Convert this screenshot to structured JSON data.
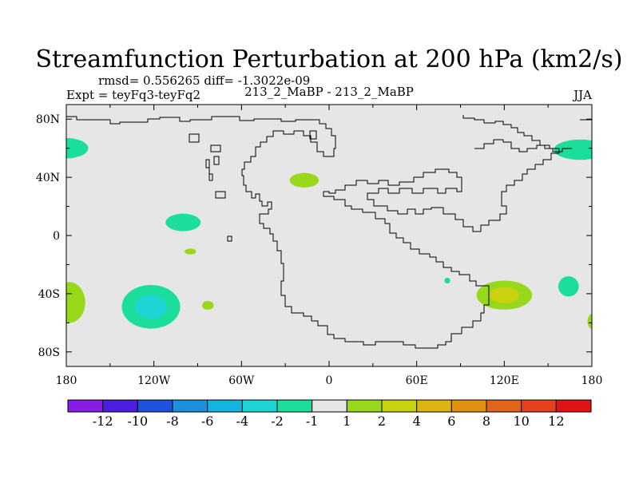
{
  "chart_data": {
    "type": "contour-map",
    "title": "Streamfunction Perturbation at 200 hPa (km2/s)",
    "stats_line": "rmsd= 0.556265 diff= -1.3022e-09",
    "left_label": "Expt = teyFq3-teyFq2",
    "center_label": "213_2_MaBP - 213_2_MaBP",
    "right_label": "JJA",
    "x_ticks": [
      {
        "value": -180,
        "label": "180"
      },
      {
        "value": -120,
        "label": "120W"
      },
      {
        "value": -60,
        "label": "60W"
      },
      {
        "value": 0,
        "label": "0"
      },
      {
        "value": 60,
        "label": "60E"
      },
      {
        "value": 120,
        "label": "120E"
      },
      {
        "value": 180,
        "label": "180"
      }
    ],
    "y_ticks": [
      {
        "value": 80,
        "label": "80N"
      },
      {
        "value": 40,
        "label": "40N"
      },
      {
        "value": 0,
        "label": "0"
      },
      {
        "value": -40,
        "label": "40S"
      },
      {
        "value": -80,
        "label": "80S"
      }
    ],
    "xlim": [
      -180,
      180
    ],
    "ylim": [
      -90,
      90
    ],
    "colorbar": {
      "levels": [
        "-12",
        "-10",
        "-8",
        "-6",
        "-4",
        "-2",
        "-1",
        "1",
        "2",
        "4",
        "6",
        "8",
        "10",
        "12"
      ],
      "colors": [
        "#8a1ae6",
        "#4b1ee0",
        "#1f52dc",
        "#1c8fdd",
        "#13b4e0",
        "#1ed4d4",
        "#1bde9b",
        "#e6e6e6",
        "#98d81a",
        "#c8d20f",
        "#dcb40f",
        "#e0910f",
        "#e0641a",
        "#e3421c",
        "#e01414"
      ]
    },
    "anomalies": [
      {
        "lon": -180,
        "lat": 60,
        "dlon": 15,
        "dlat": 7,
        "value": -1.5
      },
      {
        "lon": -17,
        "lat": 38,
        "dlon": 10,
        "dlat": 5,
        "value": 1.5
      },
      {
        "lon": 172,
        "lat": 59,
        "dlon": 18,
        "dlat": 7,
        "value": -1.5
      },
      {
        "lon": -100,
        "lat": 9,
        "dlon": 12,
        "dlat": 6,
        "value": -1.5
      },
      {
        "lon": -95,
        "lat": -11,
        "dlon": 4,
        "dlat": 2,
        "value": 1.3
      },
      {
        "lon": -122,
        "lat": -49,
        "dlon": 20,
        "dlat": 15,
        "value": -2.5
      },
      {
        "lon": -178,
        "lat": -46,
        "dlon": 11,
        "dlat": 14,
        "value": 1.5
      },
      {
        "lon": -83,
        "lat": -48,
        "dlon": 4,
        "dlat": 3,
        "value": 1.3
      },
      {
        "lon": 120,
        "lat": -41,
        "dlon": 19,
        "dlat": 10,
        "value": 2.6
      },
      {
        "lon": 164,
        "lat": -35,
        "dlon": 7,
        "dlat": 7,
        "value": -1.5
      },
      {
        "lon": 81,
        "lat": -31,
        "dlon": 2,
        "dlat": 2,
        "value": -1.2
      },
      {
        "lon": 180,
        "lat": -59,
        "dlon": 3,
        "dlat": 5,
        "value": 1.3
      }
    ]
  }
}
